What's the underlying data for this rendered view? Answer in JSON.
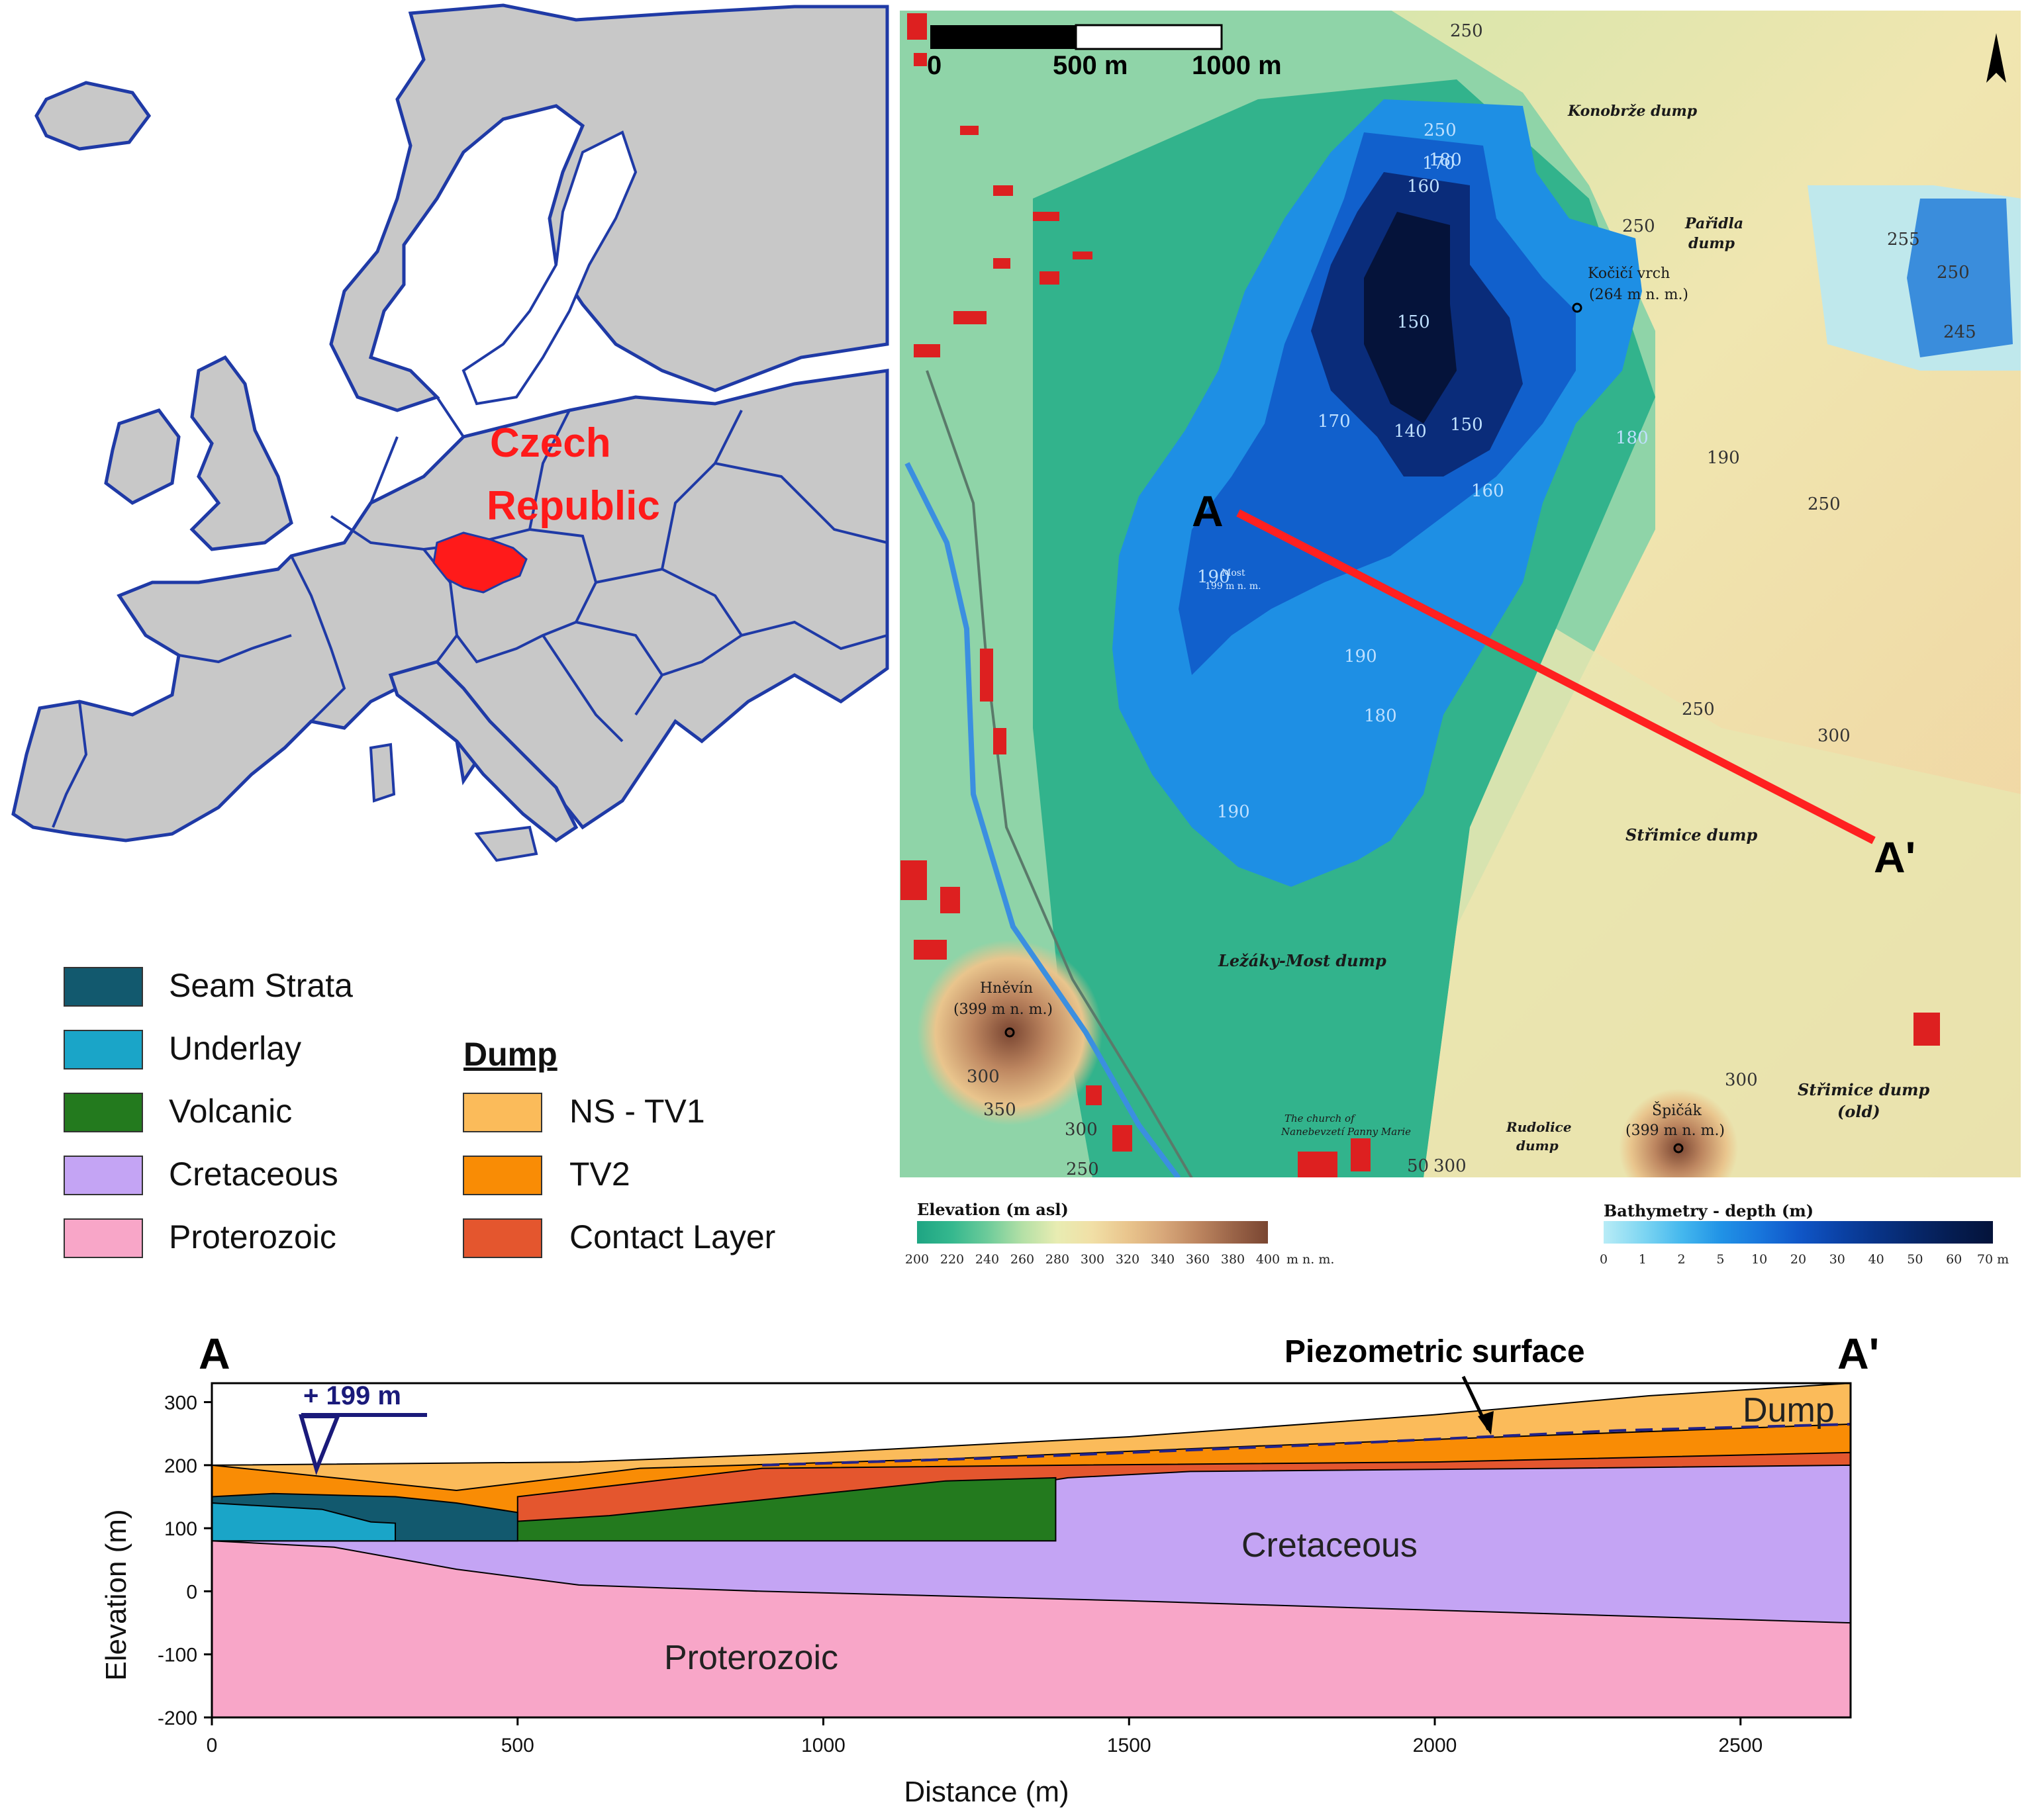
{
  "europe_map": {
    "highlight_label_line1": "Czech",
    "highlight_label_line2": "Republic",
    "colors": {
      "land": "#c8c8c8",
      "border": "#1f3aa6",
      "highlight": "#ff1a1a",
      "sea": "#ffffff"
    }
  },
  "legend": {
    "left_items": [
      {
        "label": "Seam Strata",
        "color": "#12596e"
      },
      {
        "label": "Underlay",
        "color": "#1aa5c8"
      },
      {
        "label": "Volcanic",
        "color": "#237a1e"
      },
      {
        "label": "Cretaceous",
        "color": "#c4a4f4"
      },
      {
        "label": "Proterozoic",
        "color": "#f8a6c8"
      }
    ],
    "dump_heading": "Dump",
    "dump_items": [
      {
        "label": "NS - TV1",
        "color": "#fbbb5a"
      },
      {
        "label": "TV2",
        "color": "#f98c05"
      },
      {
        "label": "Contact Layer",
        "color": "#e4562e"
      }
    ]
  },
  "site_map": {
    "scale_ticks": [
      "0",
      "500 m",
      "1000 m"
    ],
    "section_start": "A",
    "section_end": "A'",
    "places": {
      "konobrze": "Konobrže dump",
      "paridla_1": "Pařidla",
      "paridla_2": "dump",
      "kocici_1": "Kočičí vrch",
      "kocici_2": "(264 m n. m.)",
      "most_1": "Most",
      "most_2": "199 m n. m.",
      "strimice": "Střimice dump",
      "lezaky": "Ležáky-Most dump",
      "hnevin_1": "Hněvín",
      "hnevin_2": "(399 m n. m.)",
      "church_1": "The church of",
      "church_2": "Nanebevzetí Panny Marie",
      "rudolice_1": "Rudolice",
      "rudolice_2": "dump",
      "spicak_1": "Špičák",
      "spicak_2": "(399 m n. m.)",
      "strimice_old_1": "Střimice dump",
      "strimice_old_2": "(old)"
    },
    "contour_labels": [
      "250",
      "250",
      "255",
      "250",
      "245",
      "250",
      "180",
      "170",
      "160",
      "150",
      "140",
      "150",
      "160",
      "170",
      "180",
      "190",
      "190",
      "180",
      "190",
      "190",
      "250",
      "250",
      "300",
      "300",
      "300",
      "350",
      "300",
      "300",
      "250",
      "50"
    ],
    "elevation_colorbar": {
      "title": "Elevation (m asl)",
      "ticks": [
        "200",
        "220",
        "240",
        "260",
        "280",
        "300",
        "320",
        "340",
        "360",
        "380",
        "400"
      ],
      "unit": "m n. m.",
      "colors": [
        "#1ea583",
        "#35b88e",
        "#6ccb9a",
        "#b4e0a6",
        "#e8ecb2",
        "#f1dfa6",
        "#e9c58d",
        "#d8a87a",
        "#bd8660",
        "#9a6448",
        "#7a4632"
      ]
    },
    "bathymetry_colorbar": {
      "title": "Bathymetry - depth (m)",
      "ticks": [
        "0",
        "1",
        "2",
        "5",
        "10",
        "20",
        "30",
        "40",
        "50",
        "60",
        "70 m"
      ],
      "colors": [
        "#b8ecf6",
        "#7fd6f2",
        "#45b8ee",
        "#2193e6",
        "#1876dc",
        "#1057c8",
        "#0b43a8",
        "#083488",
        "#06276a",
        "#051c50",
        "#04133a"
      ]
    }
  },
  "section": {
    "label_start": "A",
    "label_end": "A'",
    "water_level_label": "+ 199 m",
    "piezometric_label": "Piezometric surface",
    "dump_label": "Dump",
    "cretaceous_label": "Cretaceous",
    "proterozoic_label": "Proterozoic"
  },
  "chart_data": {
    "type": "area",
    "xlabel": "Distance (m)",
    "ylabel": "Elevation (m)",
    "xlim": [
      0,
      2680
    ],
    "ylim": [
      -200,
      330
    ],
    "xticks": [
      0,
      500,
      1000,
      1500,
      2000,
      2500
    ],
    "yticks": [
      -200,
      -100,
      0,
      100,
      200,
      300
    ],
    "water_level": 199,
    "layers": [
      {
        "name": "Proterozoic",
        "color": "#f8a6c8",
        "top": [
          [
            0,
            80
          ],
          [
            200,
            70
          ],
          [
            400,
            35
          ],
          [
            600,
            10
          ],
          [
            900,
            0
          ],
          [
            1500,
            -15
          ],
          [
            2000,
            -30
          ],
          [
            2680,
            -50
          ]
        ]
      },
      {
        "name": "Cretaceous",
        "color": "#c4a4f4",
        "top": [
          [
            0,
            100
          ],
          [
            200,
            95
          ],
          [
            600,
            95
          ],
          [
            900,
            115
          ],
          [
            1200,
            150
          ],
          [
            1400,
            180
          ],
          [
            1600,
            190
          ],
          [
            2200,
            195
          ],
          [
            2680,
            200
          ]
        ]
      },
      {
        "name": "Volcanic",
        "color": "#237a1e",
        "top": [
          [
            180,
            95
          ],
          [
            400,
            105
          ],
          [
            650,
            120
          ],
          [
            900,
            145
          ],
          [
            1200,
            175
          ],
          [
            1380,
            180
          ]
        ]
      },
      {
        "name": "Underlay",
        "color": "#1aa5c8",
        "top": [
          [
            0,
            140
          ],
          [
            180,
            130
          ],
          [
            260,
            110
          ],
          [
            300,
            108
          ]
        ]
      },
      {
        "name": "Seam Strata",
        "color": "#12596e",
        "top": [
          [
            0,
            150
          ],
          [
            100,
            155
          ],
          [
            300,
            150
          ],
          [
            400,
            140
          ],
          [
            500,
            125
          ]
        ]
      },
      {
        "name": "Contact Layer",
        "color": "#e4562e",
        "top": [
          [
            500,
            150
          ],
          [
            900,
            195
          ],
          [
            1400,
            200
          ],
          [
            2000,
            205
          ],
          [
            2680,
            220
          ]
        ]
      },
      {
        "name": "TV2",
        "color": "#f98c05",
        "top": [
          [
            0,
            200
          ],
          [
            400,
            160
          ],
          [
            700,
            195
          ],
          [
            1200,
            210
          ],
          [
            1700,
            230
          ],
          [
            2200,
            248
          ],
          [
            2680,
            265
          ]
        ]
      },
      {
        "name": "NS - TV1",
        "color": "#fbbb5a",
        "top": [
          [
            0,
            200
          ],
          [
            600,
            205
          ],
          [
            1000,
            220
          ],
          [
            1500,
            245
          ],
          [
            2000,
            280
          ],
          [
            2350,
            310
          ],
          [
            2680,
            330
          ]
        ]
      }
    ],
    "piezometric_surface": [
      [
        900,
        200
      ],
      [
        1300,
        212
      ],
      [
        1800,
        232
      ],
      [
        2300,
        255
      ],
      [
        2680,
        265
      ]
    ]
  }
}
